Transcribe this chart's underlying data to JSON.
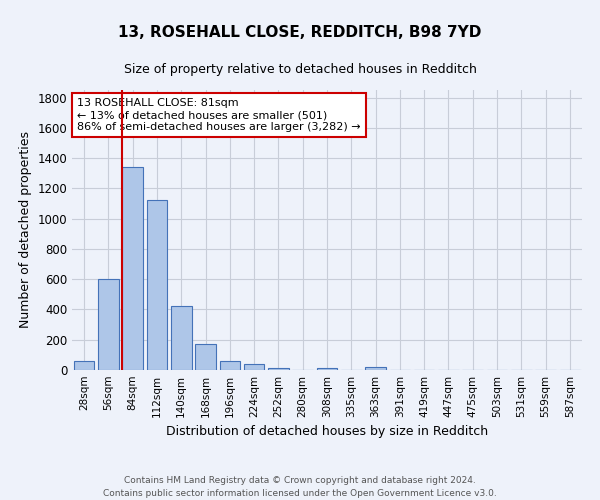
{
  "title1": "13, ROSEHALL CLOSE, REDDITCH, B98 7YD",
  "title2": "Size of property relative to detached houses in Redditch",
  "xlabel": "Distribution of detached houses by size in Redditch",
  "ylabel": "Number of detached properties",
  "categories": [
    "28sqm",
    "56sqm",
    "84sqm",
    "112sqm",
    "140sqm",
    "168sqm",
    "196sqm",
    "224sqm",
    "252sqm",
    "280sqm",
    "308sqm",
    "335sqm",
    "363sqm",
    "391sqm",
    "419sqm",
    "447sqm",
    "475sqm",
    "503sqm",
    "531sqm",
    "559sqm",
    "587sqm"
  ],
  "values": [
    60,
    600,
    1340,
    1120,
    425,
    175,
    60,
    38,
    15,
    0,
    15,
    0,
    20,
    0,
    0,
    0,
    0,
    0,
    0,
    0,
    0
  ],
  "bar_color": "#aec6e8",
  "bar_edge_color": "#4472b8",
  "bg_color": "#eef2fa",
  "grid_color": "#c8cdd8",
  "vline_color": "#cc0000",
  "vline_x_index": 2,
  "annotation_text": "13 ROSEHALL CLOSE: 81sqm\n← 13% of detached houses are smaller (501)\n86% of semi-detached houses are larger (3,282) →",
  "annotation_box_color": "#ffffff",
  "annotation_edge_color": "#cc0000",
  "footer": "Contains HM Land Registry data © Crown copyright and database right 2024.\nContains public sector information licensed under the Open Government Licence v3.0.",
  "ylim": [
    0,
    1850
  ],
  "yticks": [
    0,
    200,
    400,
    600,
    800,
    1000,
    1200,
    1400,
    1600,
    1800
  ]
}
